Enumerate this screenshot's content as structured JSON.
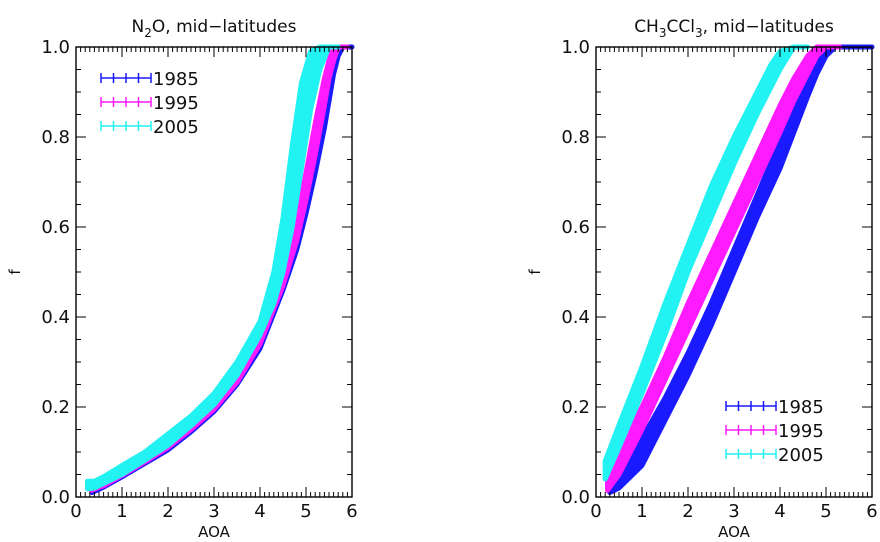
{
  "chart_data": [
    {
      "type": "scatter",
      "title": "N2O, mid-latitudes",
      "title_parts": {
        "pre": "N",
        "sub": "2",
        "post": "O, mid−latitudes"
      },
      "xlabel": "AOA",
      "ylabel": "f",
      "xlim": [
        0,
        6
      ],
      "ylim": [
        0,
        1
      ],
      "xticks": [
        "0",
        "1",
        "2",
        "3",
        "4",
        "5",
        "6"
      ],
      "yticks": [
        "0.0",
        "0.2",
        "0.4",
        "0.6",
        "0.8",
        "1.0"
      ],
      "legend_position": "top-left",
      "series": [
        {
          "name": "1985",
          "color": "#1a1aff",
          "x": [
            0.35,
            0.6,
            1.0,
            1.5,
            2.0,
            2.5,
            3.0,
            3.5,
            4.0,
            4.5,
            4.8,
            5.0,
            5.2,
            5.4,
            5.5,
            5.6,
            5.7,
            5.8,
            6.0
          ],
          "y_low": [
            0.01,
            0.022,
            0.045,
            0.075,
            0.105,
            0.145,
            0.19,
            0.25,
            0.33,
            0.46,
            0.55,
            0.63,
            0.72,
            0.82,
            0.88,
            0.94,
            0.98,
            1.0,
            1.0
          ],
          "y_high": [
            0.025,
            0.04,
            0.06,
            0.09,
            0.125,
            0.165,
            0.21,
            0.27,
            0.35,
            0.48,
            0.58,
            0.67,
            0.78,
            0.88,
            0.93,
            0.97,
            1.0,
            1.0,
            1.0
          ]
        },
        {
          "name": "1995",
          "color": "#ff1aff",
          "x": [
            0.33,
            0.6,
            1.0,
            1.5,
            2.0,
            2.5,
            3.0,
            3.5,
            4.0,
            4.5,
            4.8,
            5.0,
            5.2,
            5.4,
            5.5,
            5.6,
            5.7,
            5.9
          ],
          "y_low": [
            0.015,
            0.025,
            0.048,
            0.078,
            0.11,
            0.15,
            0.195,
            0.255,
            0.34,
            0.47,
            0.57,
            0.66,
            0.76,
            0.87,
            0.93,
            0.97,
            1.0,
            1.0
          ],
          "y_high": [
            0.03,
            0.045,
            0.065,
            0.095,
            0.13,
            0.17,
            0.215,
            0.28,
            0.365,
            0.5,
            0.62,
            0.72,
            0.83,
            0.93,
            0.97,
            1.0,
            1.0,
            1.0
          ]
        },
        {
          "name": "2005",
          "color": "#22f2f2",
          "x": [
            0.25,
            0.4,
            0.6,
            1.0,
            1.5,
            2.0,
            2.5,
            3.0,
            3.5,
            4.0,
            4.3,
            4.5,
            4.7,
            4.9,
            5.1,
            5.3,
            5.5,
            5.7
          ],
          "y_low": [
            0.018,
            0.02,
            0.03,
            0.05,
            0.082,
            0.115,
            0.158,
            0.205,
            0.27,
            0.36,
            0.43,
            0.5,
            0.6,
            0.73,
            0.86,
            0.95,
            1.0,
            1.0
          ],
          "y_high": [
            0.035,
            0.035,
            0.045,
            0.07,
            0.1,
            0.14,
            0.18,
            0.23,
            0.3,
            0.39,
            0.5,
            0.62,
            0.78,
            0.92,
            0.99,
            1.0,
            1.0,
            1.0
          ]
        }
      ]
    },
    {
      "type": "scatter",
      "title": "CH3CCl3, mid-latitudes",
      "title_parts": {
        "pre": "CH",
        "sub": "3",
        "mid": "CCl",
        "sub2": "3",
        "post": ", mid−latitudes"
      },
      "xlabel": "AOA",
      "ylabel": "f",
      "xlim": [
        0,
        6
      ],
      "ylim": [
        0,
        1
      ],
      "xticks": [
        "0",
        "1",
        "2",
        "3",
        "4",
        "5",
        "6"
      ],
      "yticks": [
        "0.0",
        "0.2",
        "0.4",
        "0.6",
        "0.8",
        "1.0"
      ],
      "legend_position": "bottom-right",
      "series": [
        {
          "name": "1985",
          "color": "#1a1aff",
          "x": [
            0.3,
            0.5,
            1.0,
            1.5,
            2.0,
            2.5,
            3.0,
            3.5,
            4.0,
            4.3,
            4.6,
            4.8,
            5.0,
            5.2,
            5.5,
            6.0
          ],
          "y_low": [
            0.01,
            0.02,
            0.07,
            0.17,
            0.27,
            0.38,
            0.5,
            0.62,
            0.73,
            0.81,
            0.89,
            0.94,
            0.98,
            1.0,
            1.0,
            1.0
          ],
          "y_high": [
            0.04,
            0.06,
            0.13,
            0.22,
            0.32,
            0.43,
            0.55,
            0.67,
            0.79,
            0.86,
            0.93,
            0.97,
            1.0,
            1.0,
            1.0,
            1.0
          ]
        },
        {
          "name": "1995",
          "color": "#ff1aff",
          "x": [
            0.25,
            0.5,
            1.0,
            1.5,
            2.0,
            2.5,
            3.0,
            3.5,
            4.0,
            4.3,
            4.6,
            4.8,
            5.0,
            5.3
          ],
          "y_low": [
            0.015,
            0.05,
            0.15,
            0.26,
            0.37,
            0.48,
            0.59,
            0.7,
            0.81,
            0.88,
            0.94,
            0.98,
            1.0,
            1.0
          ],
          "y_high": [
            0.05,
            0.1,
            0.2,
            0.31,
            0.43,
            0.54,
            0.65,
            0.76,
            0.87,
            0.93,
            0.98,
            1.0,
            1.0,
            1.0
          ]
        },
        {
          "name": "2005",
          "color": "#22f2f2",
          "x": [
            0.2,
            0.5,
            1.0,
            1.5,
            2.0,
            2.5,
            3.0,
            3.5,
            3.8,
            4.0,
            4.3,
            4.6
          ],
          "y_low": [
            0.04,
            0.11,
            0.23,
            0.36,
            0.5,
            0.62,
            0.74,
            0.85,
            0.91,
            0.95,
            1.0,
            1.0
          ],
          "y_high": [
            0.08,
            0.16,
            0.29,
            0.43,
            0.56,
            0.69,
            0.8,
            0.9,
            0.96,
            0.99,
            1.0,
            1.0
          ]
        }
      ]
    }
  ]
}
